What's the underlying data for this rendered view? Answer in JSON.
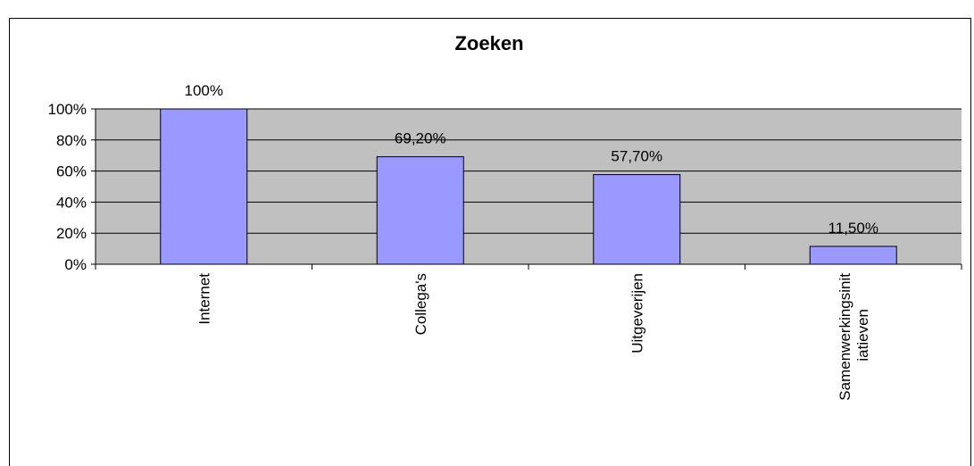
{
  "chart_data": {
    "type": "bar",
    "title": "Zoeken",
    "categories": [
      "Internet",
      "Collega's",
      "Uitgeverijen",
      "Samenwerkingsinitiatieven"
    ],
    "values": [
      100,
      69.2,
      57.7,
      11.5
    ],
    "value_labels": [
      "100%",
      "69,20%",
      "57,70%",
      "11,50%"
    ],
    "color": "#9999ff",
    "ylim": [
      0,
      100
    ],
    "yticks": [
      {
        "value": 0,
        "label": "0%"
      },
      {
        "value": 20,
        "label": "20%"
      },
      {
        "value": 40,
        "label": "40%"
      },
      {
        "value": 60,
        "label": "60%"
      },
      {
        "value": 80,
        "label": "80%"
      },
      {
        "value": 100,
        "label": "100%"
      }
    ],
    "grid": true
  }
}
